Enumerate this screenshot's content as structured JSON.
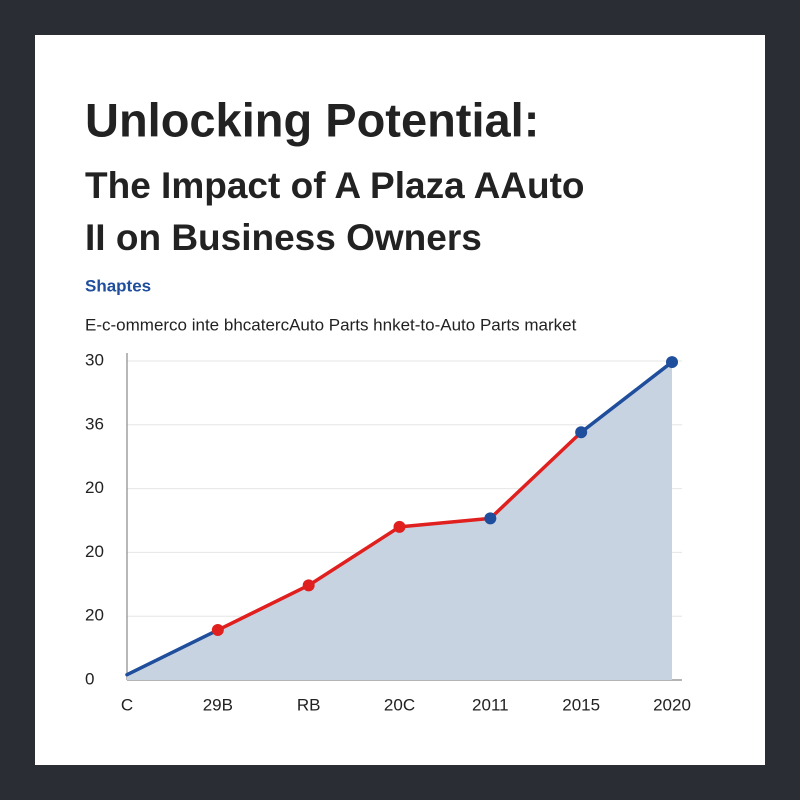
{
  "chart_data": {
    "type": "area-line",
    "title": [
      "Unlocking Potential:",
      "The Impact of A Plaza AAuto",
      "II on Business Owners"
    ],
    "label": "Shaptes",
    "subtitle": "E-c-ommerco inte bhcatercAuto Parts hnket-to-Auto Parts market",
    "categories": [
      "C",
      "29B",
      "RB",
      "20C",
      "2011",
      "2015",
      "2020"
    ],
    "values": [
      0.5,
      4.7,
      8.9,
      14.4,
      15.2,
      23.3,
      29.9
    ],
    "color": "#1f4e9c",
    "area_color": "#c8d3e2",
    "segment_colors": [
      "#1f4e9c",
      "#e0201e",
      "#e0201e",
      "#e0201e",
      "#e0201e",
      "#1f4e9c"
    ],
    "marker_colors": [
      null,
      "#e0201e",
      "#e0201e",
      "#e0201e",
      "#1f4e9c",
      "#1f4e9c",
      "#1f4e9c"
    ],
    "ylim": [
      0,
      30
    ],
    "yticks": [
      0,
      {
        "value": 6,
        "label": "20"
      },
      {
        "value": 12,
        "label": "20"
      },
      {
        "value": 18,
        "label": "20"
      },
      {
        "value": 24,
        "label": "36"
      },
      30
    ],
    "grid": true
  }
}
